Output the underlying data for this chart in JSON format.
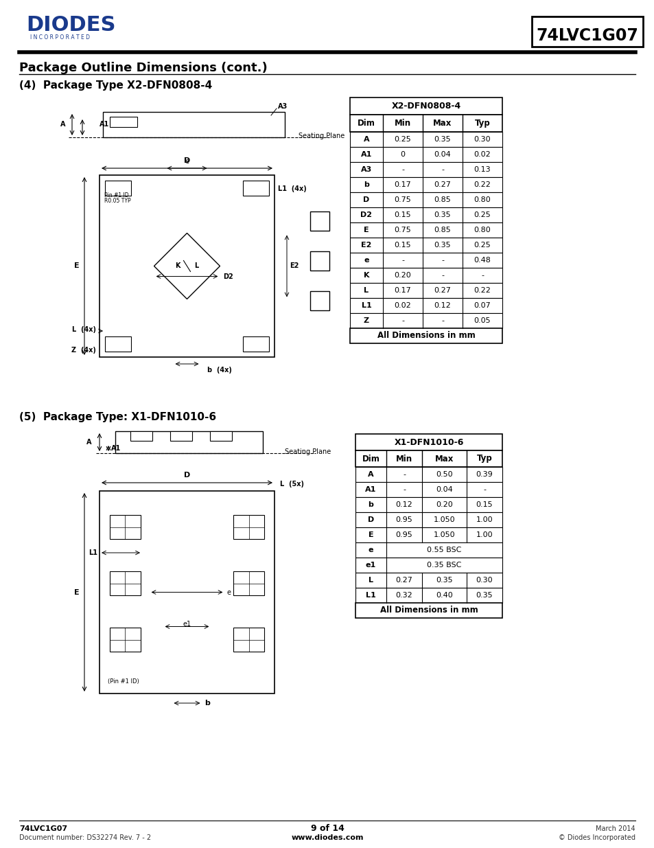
{
  "page_bg": "#ffffff",
  "logo_color": "#1a3a8c",
  "title_box_text": "74LVC1G07",
  "section_title": "Package Outline Dimensions (cont.)",
  "pkg1_label": "(4)  Package Type X2-DFN0808-4",
  "pkg2_label": "(5)  Package Type: X1-DFN1010-6",
  "table1_title": "X2-DFN0808-4",
  "table1_cols": [
    "Dim",
    "Min",
    "Max",
    "Typ"
  ],
  "table1_rows": [
    [
      "A",
      "0.25",
      "0.35",
      "0.30"
    ],
    [
      "A1",
      "0",
      "0.04",
      "0.02"
    ],
    [
      "A3",
      "-",
      "-",
      "0.13"
    ],
    [
      "b",
      "0.17",
      "0.27",
      "0.22"
    ],
    [
      "D",
      "0.75",
      "0.85",
      "0.80"
    ],
    [
      "D2",
      "0.15",
      "0.35",
      "0.25"
    ],
    [
      "E",
      "0.75",
      "0.85",
      "0.80"
    ],
    [
      "E2",
      "0.15",
      "0.35",
      "0.25"
    ],
    [
      "e",
      "-",
      "-",
      "0.48"
    ],
    [
      "K",
      "0.20",
      "-",
      "-"
    ],
    [
      "L",
      "0.17",
      "0.27",
      "0.22"
    ],
    [
      "L1",
      "0.02",
      "0.12",
      "0.07"
    ],
    [
      "Z",
      "-",
      "-",
      "0.05"
    ]
  ],
  "table1_footer": "All Dimensions in mm",
  "table2_title": "X1-DFN1010-6",
  "table2_cols": [
    "Dim",
    "Min",
    "Max",
    "Typ"
  ],
  "table2_rows": [
    [
      "A",
      "-",
      "0.50",
      "0.39"
    ],
    [
      "A1",
      "-",
      "0.04",
      "-"
    ],
    [
      "b",
      "0.12",
      "0.20",
      "0.15"
    ],
    [
      "D",
      "0.95",
      "1.050",
      "1.00"
    ],
    [
      "E",
      "0.95",
      "1.050",
      "1.00"
    ],
    [
      "e",
      "",
      "0.55 BSC",
      ""
    ],
    [
      "e1",
      "",
      "0.35 BSC",
      ""
    ],
    [
      "L",
      "0.27",
      "0.35",
      "0.30"
    ],
    [
      "L1",
      "0.32",
      "0.40",
      "0.35"
    ]
  ],
  "table2_footer": "All Dimensions in mm",
  "footer_left1": "74LVC1G07",
  "footer_left2": "Document number: DS32274 Rev. 7 - 2",
  "footer_center": "9 of 14",
  "footer_center2": "www.diodes.com",
  "footer_right1": "March 2014",
  "footer_right2": "© Diodes Incorporated"
}
